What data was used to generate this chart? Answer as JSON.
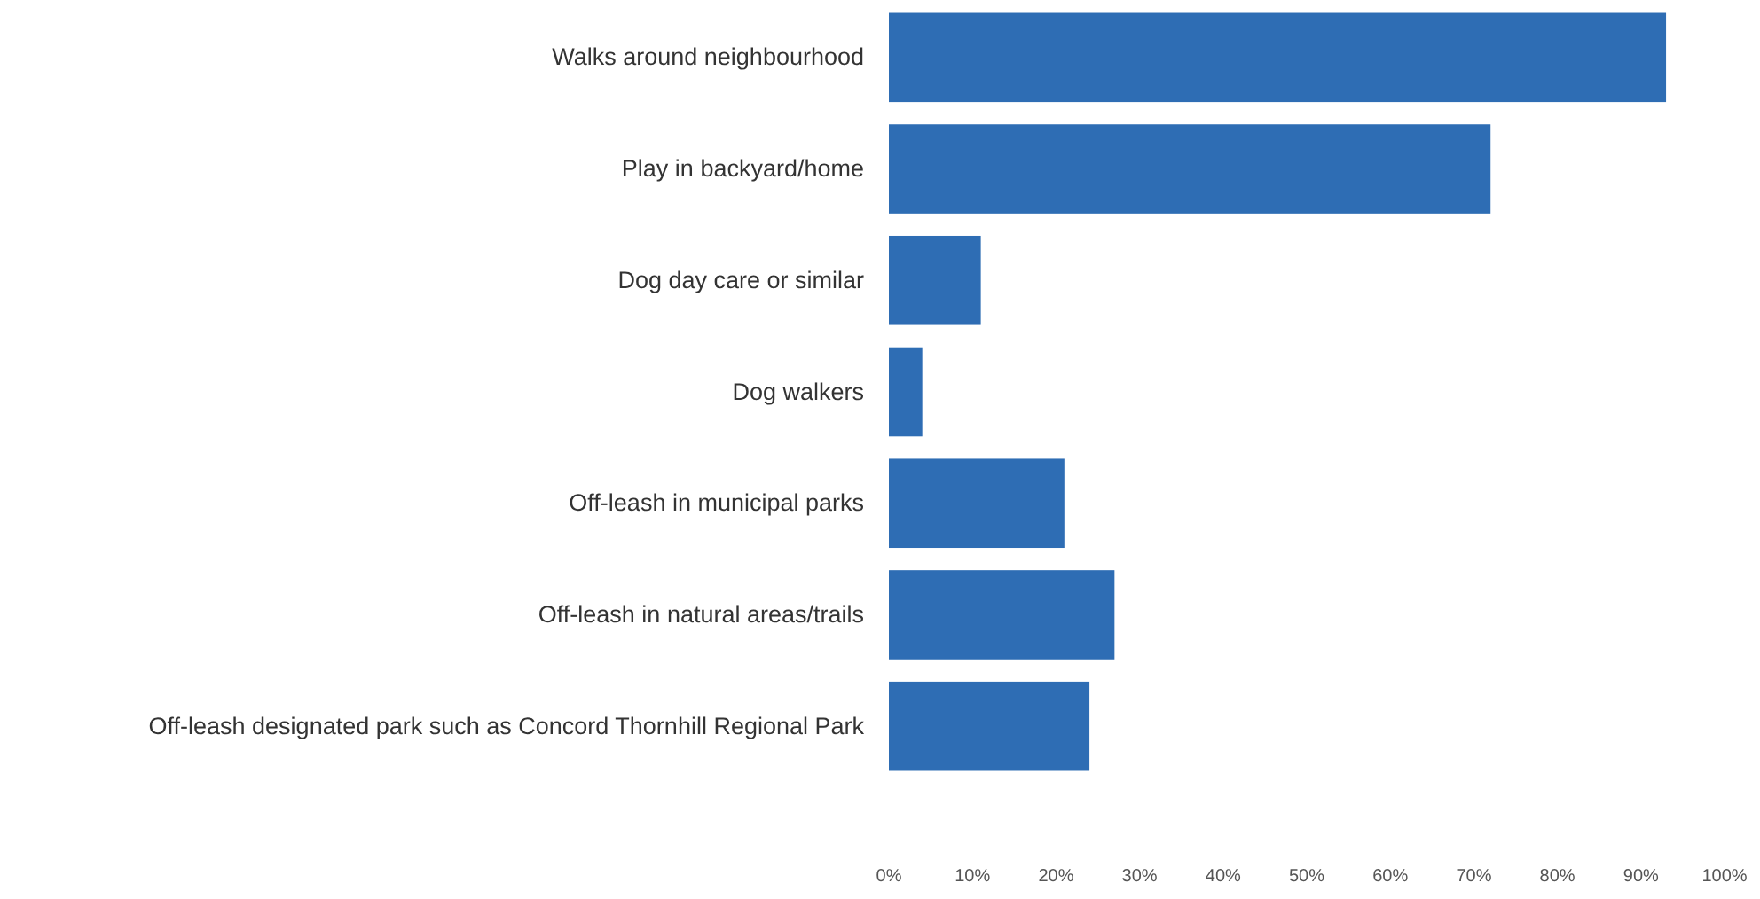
{
  "chart_data": {
    "type": "bar",
    "orientation": "horizontal",
    "categories": [
      "Walks around neighbourhood",
      "Play in backyard/home",
      "Dog day care or similar",
      "Dog walkers",
      "Off-leash in municipal parks",
      "Off-leash in natural areas/trails",
      "Off-leash designated park such as Concord Thornhill Regional Park"
    ],
    "values": [
      93,
      72,
      11,
      4,
      21,
      27,
      24
    ],
    "color": "#2e6db4",
    "xlim": [
      0,
      100
    ],
    "xticks": [
      {
        "value": 0,
        "label": "0%"
      },
      {
        "value": 10,
        "label": "10%"
      },
      {
        "value": 20,
        "label": "20%"
      },
      {
        "value": 30,
        "label": "30%"
      },
      {
        "value": 40,
        "label": "40%"
      },
      {
        "value": 50,
        "label": "50%"
      },
      {
        "value": 60,
        "label": "60%"
      },
      {
        "value": 70,
        "label": "70%"
      },
      {
        "value": 80,
        "label": "80%"
      },
      {
        "value": 90,
        "label": "90%"
      },
      {
        "value": 100,
        "label": "100%"
      }
    ],
    "grid": false
  }
}
